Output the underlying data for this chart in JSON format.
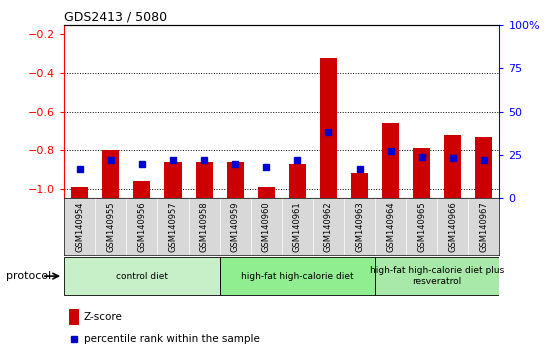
{
  "title": "GDS2413 / 5080",
  "samples": [
    "GSM140954",
    "GSM140955",
    "GSM140956",
    "GSM140957",
    "GSM140958",
    "GSM140959",
    "GSM140960",
    "GSM140961",
    "GSM140962",
    "GSM140963",
    "GSM140964",
    "GSM140965",
    "GSM140966",
    "GSM140967"
  ],
  "zscore": [
    -0.99,
    -0.8,
    -0.96,
    -0.86,
    -0.86,
    -0.86,
    -0.99,
    -0.87,
    -0.32,
    -0.92,
    -0.66,
    -0.79,
    -0.72,
    -0.73
  ],
  "percentile": [
    17,
    22,
    20,
    22,
    22,
    20,
    18,
    22,
    38,
    17,
    27,
    24,
    23,
    22
  ],
  "ylim_left": [
    -1.05,
    -0.15
  ],
  "ylim_right": [
    0,
    100
  ],
  "yticks_left": [
    -1.0,
    -0.8,
    -0.6,
    -0.4,
    -0.2
  ],
  "yticks_right": [
    0,
    25,
    50,
    75,
    100
  ],
  "groups": [
    {
      "label": "control diet",
      "start": 0,
      "end": 5,
      "color": "#c8f0c8"
    },
    {
      "label": "high-fat high-calorie diet",
      "start": 5,
      "end": 10,
      "color": "#90ee90"
    },
    {
      "label": "high-fat high-calorie diet plus\nresveratrol",
      "start": 10,
      "end": 14,
      "color": "#a8e8a8"
    }
  ],
  "bar_color": "#cc0000",
  "dot_color": "#0000cc",
  "protocol_label": "protocol",
  "legend_zscore": "Z-score",
  "legend_percentile": "percentile rank within the sample",
  "tick_bg_color": "#d8d8d8"
}
